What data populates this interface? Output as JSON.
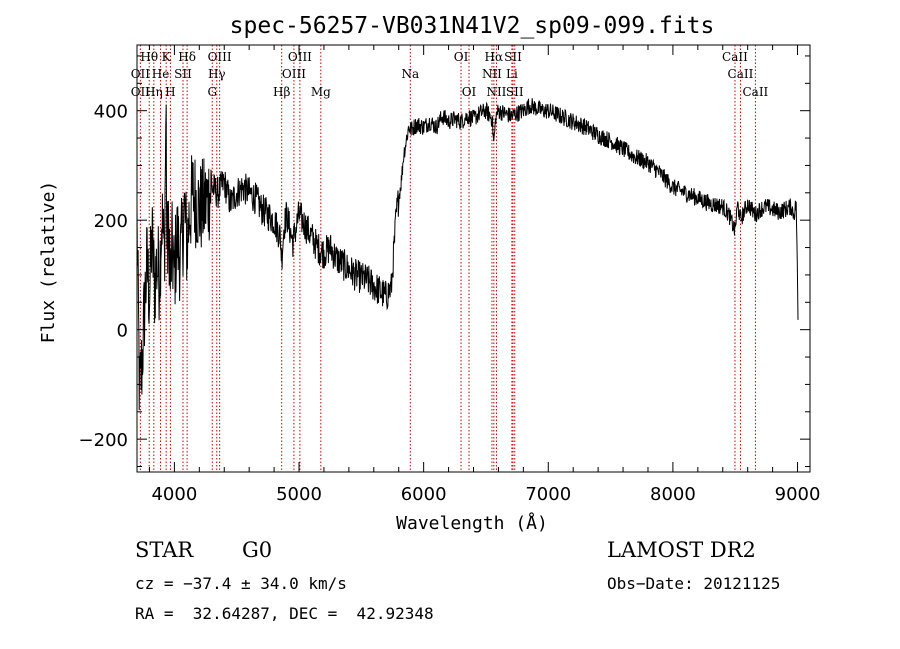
{
  "chart_data": {
    "type": "line",
    "title": "spec-56257-VB031N41V2_sp09-099.fits",
    "xlabel": "Wavelength (Å)",
    "ylabel": "Flux (relative)",
    "xlim": [
      3700,
      9100
    ],
    "ylim": [
      -260,
      520
    ],
    "xticks": [
      4000,
      5000,
      6000,
      7000,
      8000,
      9000
    ],
    "yticks": [
      -200,
      0,
      200,
      400
    ],
    "x_minor_step": 200,
    "y_minor_step": 50,
    "series": [
      {
        "name": "flux",
        "x": [
          3700,
          3720,
          3740,
          3760,
          3780,
          3800,
          3820,
          3840,
          3860,
          3880,
          3900,
          3920,
          3933,
          3940,
          3960,
          3968,
          3980,
          4000,
          4020,
          4050,
          4080,
          4101,
          4120,
          4150,
          4200,
          4250,
          4300,
          4350,
          4400,
          4450,
          4500,
          4550,
          4600,
          4650,
          4700,
          4750,
          4800,
          4850,
          4861,
          4880,
          4900,
          4950,
          5000,
          5050,
          5100,
          5150,
          5200,
          5250,
          5300,
          5350,
          5400,
          5450,
          5500,
          5550,
          5600,
          5650,
          5700,
          5720,
          5740,
          5760,
          5780,
          5800,
          5820,
          5840,
          5860,
          5880,
          5900,
          5920,
          5950,
          6000,
          6050,
          6100,
          6150,
          6200,
          6250,
          6300,
          6350,
          6400,
          6450,
          6500,
          6550,
          6563,
          6580,
          6600,
          6650,
          6700,
          6750,
          6800,
          6850,
          6900,
          6950,
          7000,
          7050,
          7100,
          7150,
          7200,
          7300,
          7400,
          7500,
          7600,
          7700,
          7800,
          7900,
          8000,
          8100,
          8200,
          8300,
          8400,
          8450,
          8498,
          8520,
          8542,
          8580,
          8600,
          8662,
          8700,
          8750,
          8800,
          8850,
          8900,
          8950,
          8970,
          8990,
          9000,
          9005
        ],
        "y": [
          200,
          -120,
          -60,
          40,
          120,
          60,
          170,
          80,
          120,
          100,
          210,
          130,
          420,
          150,
          170,
          80,
          150,
          100,
          170,
          130,
          220,
          150,
          210,
          250,
          220,
          230,
          260,
          250,
          270,
          230,
          250,
          260,
          250,
          240,
          220,
          210,
          200,
          170,
          130,
          190,
          210,
          160,
          210,
          190,
          170,
          150,
          140,
          150,
          130,
          120,
          110,
          100,
          95,
          90,
          80,
          70,
          60,
          70,
          75,
          140,
          210,
          240,
          270,
          320,
          345,
          370,
          365,
          370,
          375,
          370,
          380,
          370,
          390,
          380,
          385,
          380,
          390,
          385,
          395,
          400,
          385,
          340,
          390,
          400,
          395,
          390,
          395,
          400,
          410,
          405,
          400,
          400,
          395,
          390,
          385,
          380,
          370,
          355,
          345,
          330,
          315,
          305,
          285,
          260,
          250,
          240,
          230,
          225,
          210,
          180,
          230,
          200,
          220,
          230,
          210,
          220,
          225,
          220,
          215,
          220,
          225,
          210,
          230,
          80,
          0
        ]
      }
    ],
    "lines": [
      {
        "label": "Hθ",
        "x": 3798,
        "row": 0
      },
      {
        "label": "K",
        "x": 3934,
        "row": 0
      },
      {
        "label": "Hδ",
        "x": 4102,
        "row": 0
      },
      {
        "label": "OIII",
        "x": 4363,
        "row": 0
      },
      {
        "label": "OIII",
        "x": 5007,
        "row": 0
      },
      {
        "label": "OI",
        "x": 6300,
        "row": 0
      },
      {
        "label": "Hα",
        "x": 6563,
        "row": 0
      },
      {
        "label": "SII",
        "x": 6717,
        "row": 0
      },
      {
        "label": "CaII",
        "x": 8498,
        "row": 0
      },
      {
        "label": "OII",
        "x": 3727,
        "row": 1
      },
      {
        "label": "He",
        "x": 3889,
        "row": 1
      },
      {
        "label": "SII",
        "x": 4069,
        "row": 1
      },
      {
        "label": "Hγ",
        "x": 4340,
        "row": 1
      },
      {
        "label": "OIII",
        "x": 4959,
        "row": 1
      },
      {
        "label": "Na",
        "x": 5893,
        "row": 1
      },
      {
        "label": "NII",
        "x": 6548,
        "row": 1
      },
      {
        "label": "Li",
        "x": 6708,
        "row": 1
      },
      {
        "label": "CaII",
        "x": 8542,
        "row": 1
      },
      {
        "label": "OII",
        "x": 3727,
        "row": 2
      },
      {
        "label": "Hη",
        "x": 3835,
        "row": 2
      },
      {
        "label": "H",
        "x": 3968,
        "row": 2
      },
      {
        "label": "G",
        "x": 4304,
        "row": 2
      },
      {
        "label": "Hβ",
        "x": 4861,
        "row": 2
      },
      {
        "label": "Mg",
        "x": 5175,
        "row": 2
      },
      {
        "label": "OI",
        "x": 6364,
        "row": 2
      },
      {
        "label": "NII",
        "x": 6584,
        "row": 2
      },
      {
        "label": "SII",
        "x": 6731,
        "row": 2
      },
      {
        "label": "CaII",
        "x": 8662,
        "row": 2
      }
    ]
  },
  "info": {
    "object_class": "STAR",
    "subclass": "G0",
    "survey": "LAMOST DR2",
    "redshift": "cz = −37.4 ± 34.0 km/s",
    "obs_date": "Obs−Date: 20121125",
    "coords": "RA =  32.64287, DEC =  42.92348"
  },
  "colors": {
    "spectrum": "#000000",
    "line_marker": "#cc0000"
  }
}
